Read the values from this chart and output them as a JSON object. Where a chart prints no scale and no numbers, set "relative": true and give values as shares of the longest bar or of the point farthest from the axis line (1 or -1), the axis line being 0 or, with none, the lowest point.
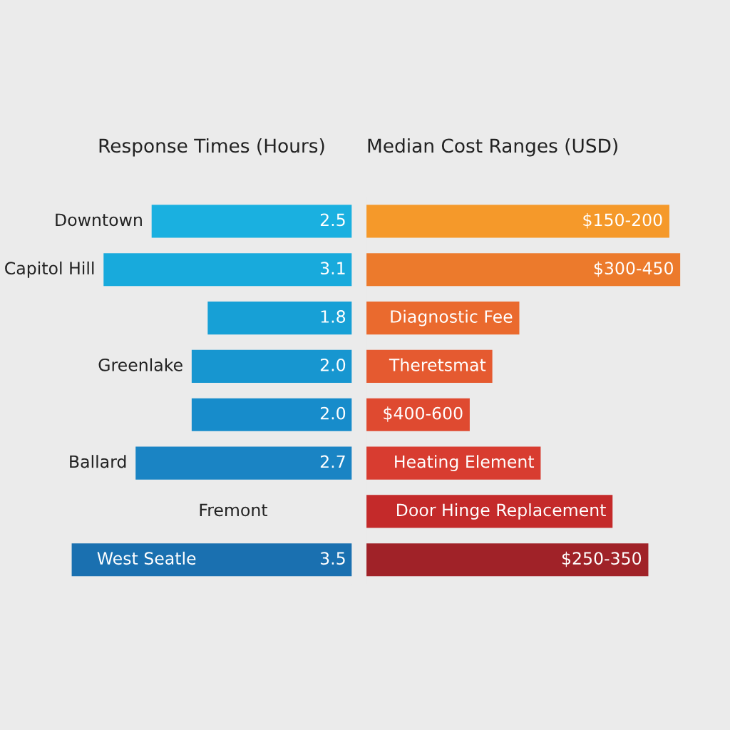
{
  "chart_data": [
    {
      "type": "bar",
      "title": "Response Times (Hours)",
      "orientation": "horizontal",
      "categories": [
        "Downtown",
        "Capitol Hill",
        null,
        "Greenlake",
        null,
        "Ballard",
        "Fremont",
        "West Seatle"
      ],
      "values": [
        2.5,
        3.1,
        1.8,
        2.0,
        2.0,
        2.7,
        null,
        3.5
      ],
      "colors": [
        "#1ab0e0",
        "#18aadc",
        "#17a0d6",
        "#1796d0",
        "#178ccb",
        "#1a84c4",
        "#1a7cbf",
        "#1a70b0"
      ],
      "value_labels": [
        "2.5",
        "3.1",
        "1.8",
        "2.0",
        "2.0",
        "2.7",
        null,
        "3.5"
      ]
    },
    {
      "type": "bar",
      "title": "Median Cost Ranges (USD)",
      "orientation": "horizontal",
      "relative": true,
      "categories": [
        "$150-200",
        "$300-450",
        "Diagnostic Fee",
        "Theretsmat",
        "$400-600",
        "Heating Element",
        "Door Hinge Replacement",
        "$250-350"
      ],
      "values": [
        0.965,
        1,
        0.487,
        0.401,
        0.329,
        0.555,
        0.784,
        0.898
      ],
      "colors": [
        "#f5992a",
        "#ec7a2c",
        "#ea6a2e",
        "#e55a30",
        "#df4a30",
        "#d83c30",
        "#c42a2a",
        "#a02228"
      ]
    }
  ]
}
